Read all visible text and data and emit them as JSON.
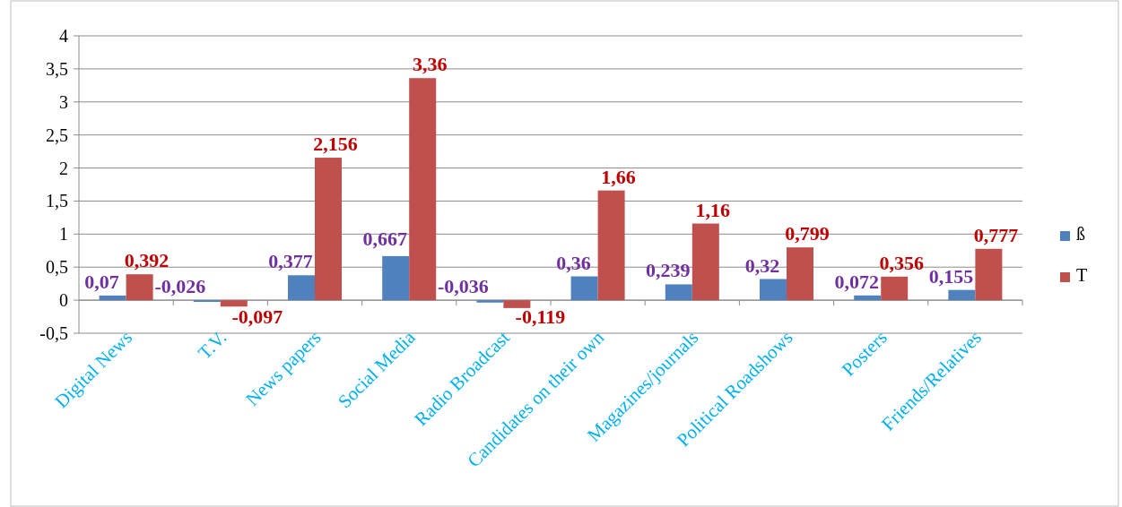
{
  "chart_data": {
    "type": "bar",
    "categories": [
      "Digital News",
      "T.V.",
      "News papers",
      "Social Media",
      "Radio Broadcast",
      "Candidates on their own",
      "Magazines/journals",
      "Political Roadshows",
      "Posters",
      "Friends/Relatives"
    ],
    "series": [
      {
        "name": "ß",
        "color": "#4f81bd",
        "values": [
          0.07,
          -0.026,
          0.377,
          0.667,
          -0.036,
          0.36,
          0.239,
          0.32,
          0.072,
          0.155
        ],
        "value_labels": [
          "0,07",
          "-0,026",
          "0,377",
          "0,667",
          "-0,036",
          "0,36",
          "0,239",
          "0,32",
          "0,072",
          "0,155"
        ]
      },
      {
        "name": "T",
        "color": "#c0504d",
        "values": [
          0.392,
          -0.097,
          2.156,
          3.36,
          -0.119,
          1.66,
          1.16,
          0.799,
          0.356,
          0.777
        ],
        "value_labels": [
          "0,392",
          "-0,097",
          "2,156",
          "3,36",
          "-0,119",
          "1,66",
          "1,16",
          "0,799",
          "0,356",
          "0,777"
        ]
      }
    ],
    "ylim": [
      -0.5,
      4
    ],
    "yticks": [
      {
        "value": -0.5,
        "label": "-0,5"
      },
      0,
      {
        "value": 0.5,
        "label": "0,5"
      },
      1,
      {
        "value": 1.5,
        "label": "1,5"
      },
      2,
      {
        "value": 2.5,
        "label": "2,5"
      },
      3,
      {
        "value": 3.5,
        "label": "3,5"
      },
      4
    ],
    "grid": "y",
    "legend": "right"
  }
}
